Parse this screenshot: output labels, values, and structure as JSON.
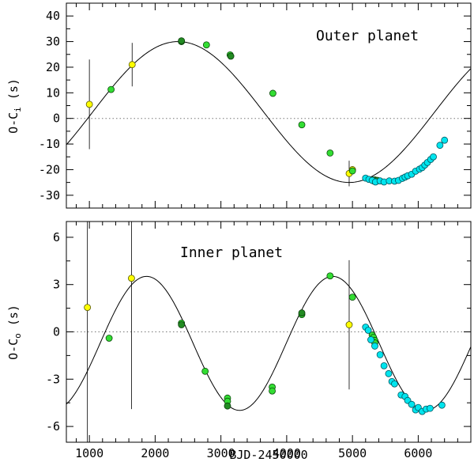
{
  "chart_data": [
    {
      "type": "scatter",
      "title": "Outer planet",
      "xlabel": "BJD-2450000",
      "ylabel": "O-C",
      "ylabel_sub": "i",
      "ylabel_unit": "(s)",
      "xlim": [
        650,
        6800
      ],
      "ylim": [
        -35,
        45
      ],
      "xticks": [
        1000,
        2000,
        3000,
        4000,
        5000,
        6000
      ],
      "yticks": [
        -30,
        -20,
        -10,
        0,
        10,
        20,
        30,
        40
      ],
      "model": {
        "amplitude": 27.5,
        "period": 5200,
        "peak_x": 2350,
        "offset": 2.5
      },
      "colors": {
        "yellow": "#ffff00",
        "green": "#33dd33",
        "darkgreen": "#228b22",
        "cyan": "#00e5ee"
      },
      "series": [
        {
          "name": "yellow",
          "points": [
            [
              1000,
              5.5,
              17.5
            ],
            [
              1650,
              21,
              8.5
            ],
            [
              4950,
              -21.5,
              5
            ],
            [
              5000,
              -20,
              0
            ]
          ]
        },
        {
          "name": "green",
          "points": [
            [
              1330,
              11.3
            ],
            [
              2400,
              30
            ],
            [
              2780,
              28.7
            ],
            [
              3140,
              24.8
            ],
            [
              3790,
              9.8
            ],
            [
              4230,
              -2.5
            ],
            [
              4660,
              -13.5
            ],
            [
              5000,
              -20.5
            ]
          ]
        },
        {
          "name": "darkgreen",
          "points": [
            [
              2400,
              30.3
            ],
            [
              3150,
              24.3
            ],
            [
              5300,
              -24
            ],
            [
              5320,
              -24.4
            ],
            [
              5340,
              -24
            ],
            [
              5360,
              -24.6
            ],
            [
              5380,
              -24.2
            ]
          ]
        },
        {
          "name": "cyan",
          "points": [
            [
              5200,
              -23.3
            ],
            [
              5250,
              -23.8
            ],
            [
              5300,
              -24.2
            ],
            [
              5350,
              -24.8
            ],
            [
              5420,
              -24.4
            ],
            [
              5480,
              -24.8
            ],
            [
              5560,
              -24.4
            ],
            [
              5640,
              -24.5
            ],
            [
              5700,
              -24.2
            ],
            [
              5760,
              -23.4
            ],
            [
              5800,
              -22.9
            ],
            [
              5840,
              -22.4
            ],
            [
              5900,
              -21.8
            ],
            [
              5960,
              -20.6
            ],
            [
              6020,
              -19.8
            ],
            [
              6060,
              -19.2
            ],
            [
              6100,
              -18.2
            ],
            [
              6140,
              -17.2
            ],
            [
              6190,
              -16
            ],
            [
              6230,
              -15
            ],
            [
              6330,
              -10.5
            ],
            [
              6400,
              -8.5
            ]
          ]
        }
      ]
    },
    {
      "type": "scatter",
      "title": "Inner planet",
      "xlabel": "BJD-2450000",
      "ylabel": "O-C",
      "ylabel_sub": "o",
      "ylabel_unit": "(s)",
      "xlim": [
        650,
        6800
      ],
      "ylim": [
        -7,
        7
      ],
      "xticks": [
        1000,
        2000,
        3000,
        4000,
        5000,
        6000
      ],
      "yticks": [
        -6,
        -3,
        0,
        3,
        6
      ],
      "model": {
        "amplitude": 4.25,
        "period": 2830,
        "peak_x": 1870,
        "offset": -0.73
      },
      "series": [
        {
          "name": "yellow",
          "points": [
            [
              970,
              1.55,
              9
            ],
            [
              1640,
              3.4,
              8.3
            ],
            [
              4950,
              0.45,
              4.1
            ]
          ]
        },
        {
          "name": "green",
          "points": [
            [
              1300,
              -0.4
            ],
            [
              2400,
              0.55
            ],
            [
              2760,
              -2.5
            ],
            [
              3100,
              -4.2
            ],
            [
              3100,
              -4.4
            ],
            [
              3780,
              -3.5
            ],
            [
              3780,
              -3.75
            ],
            [
              4230,
              1.1
            ],
            [
              4660,
              3.55
            ],
            [
              5000,
              2.2
            ],
            [
              5300,
              -0.2
            ],
            [
              5320,
              -0.35
            ],
            [
              5340,
              -0.55
            ],
            [
              5340,
              -0.7
            ]
          ]
        },
        {
          "name": "darkgreen",
          "points": [
            [
              2400,
              0.45
            ],
            [
              3100,
              -4.7
            ],
            [
              4230,
              1.2
            ]
          ]
        },
        {
          "name": "cyan",
          "points": [
            [
              5200,
              0.3
            ],
            [
              5240,
              0.1
            ],
            [
              5280,
              -0.5
            ],
            [
              5340,
              -0.9
            ],
            [
              5420,
              -1.45
            ],
            [
              5480,
              -2.15
            ],
            [
              5550,
              -2.65
            ],
            [
              5600,
              -3.15
            ],
            [
              5640,
              -3.3
            ],
            [
              5740,
              -4
            ],
            [
              5800,
              -4.1
            ],
            [
              5840,
              -4.35
            ],
            [
              5900,
              -4.6
            ],
            [
              5960,
              -4.95
            ],
            [
              6000,
              -4.8
            ],
            [
              6060,
              -5.05
            ],
            [
              6120,
              -4.9
            ],
            [
              6180,
              -4.85
            ],
            [
              6360,
              -4.65
            ]
          ]
        }
      ]
    }
  ]
}
